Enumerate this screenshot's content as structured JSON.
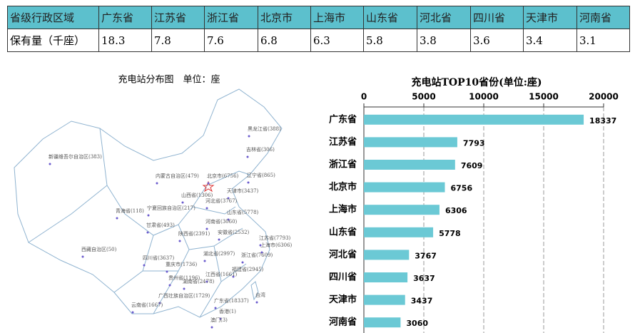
{
  "table": {
    "rows": [
      [
        "省级行政区域",
        "广东省",
        "江苏省",
        "浙江省",
        "北京市",
        "上海市",
        "山东省",
        "河北省",
        "四川省",
        "天津市",
        "河南省"
      ],
      [
        "保有量（千座）",
        "18.3",
        "7.8",
        "7.6",
        "6.8",
        "6.3",
        "5.8",
        "3.8",
        "3.6",
        "3.4",
        "3.1"
      ]
    ]
  },
  "map": {
    "title": "充电站分布图　单位：座",
    "labels": [
      "黑龙江省(388)",
      "吉林省(306)",
      "新疆维吾尔自治区(383)",
      "内蒙古自治区(479)",
      "北京市(6756)",
      "辽宁省(865)",
      "天津市(3437)",
      "山西省(1306)",
      "河北省(3767)",
      "宁夏回族自治区(217)",
      "山东省(5778)",
      "青海省(118)",
      "甘肃省(493)",
      "河南省(3060)",
      "陕西省(2391)",
      "安徽省(2532)",
      "江苏省(7793)",
      "上海市(6306)",
      "西藏自治区(50)",
      "四川省(3637)",
      "湖北省(2997)",
      "浙江省(7609)",
      "重庆市(1736)",
      "福建省(2945)",
      "贵州省(1196)",
      "江西省(1661)",
      "湖南省(2478)",
      "广西壮族自治区(1729)",
      "广东省(18337)",
      "台湾",
      "云南省(1667)",
      "香港(1)",
      "澳门(3)"
    ]
  },
  "chart_data": {
    "type": "barh",
    "title": "充电站TOP10省份(单位:座)",
    "categories": [
      "广东省",
      "江苏省",
      "浙江省",
      "北京市",
      "上海市",
      "山东省",
      "河北省",
      "四川省",
      "天津市",
      "河南省"
    ],
    "values": [
      18337,
      7793,
      7609,
      6756,
      6306,
      5778,
      3767,
      3637,
      3437,
      3060
    ],
    "color": "#6bc9d5",
    "xlim": [
      0,
      20000
    ],
    "xticks": [
      0,
      5000,
      10000,
      15000,
      20000
    ],
    "grid": true
  }
}
